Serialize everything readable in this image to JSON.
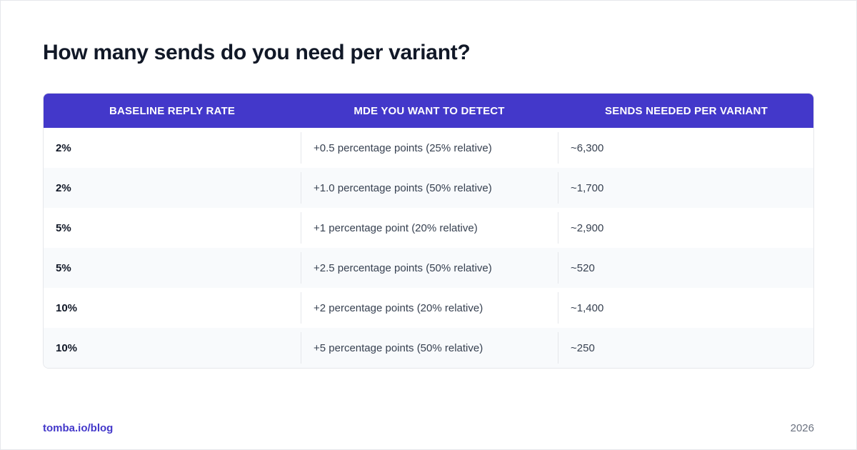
{
  "title": "How many sends do you need per variant?",
  "table": {
    "headers": [
      "BASELINE REPLY RATE",
      "MDE YOU WANT TO DETECT",
      "SENDS NEEDED PER VARIANT"
    ],
    "rows": [
      [
        "2%",
        "+0.5 percentage points (25% relative)",
        "~6,300"
      ],
      [
        "2%",
        "+1.0 percentage points (50% relative)",
        "~1,700"
      ],
      [
        "5%",
        "+1 percentage point (20% relative)",
        "~2,900"
      ],
      [
        "5%",
        "+2.5 percentage points (50% relative)",
        "~520"
      ],
      [
        "10%",
        "+2 percentage points (20% relative)",
        "~1,400"
      ],
      [
        "10%",
        "+5 percentage points (50% relative)",
        "~250"
      ]
    ]
  },
  "footer": {
    "link": "tomba.io/blog",
    "year": "2026"
  },
  "colors": {
    "header_bg": "#4338ca",
    "accent": "#4338ca",
    "title": "#111827"
  }
}
